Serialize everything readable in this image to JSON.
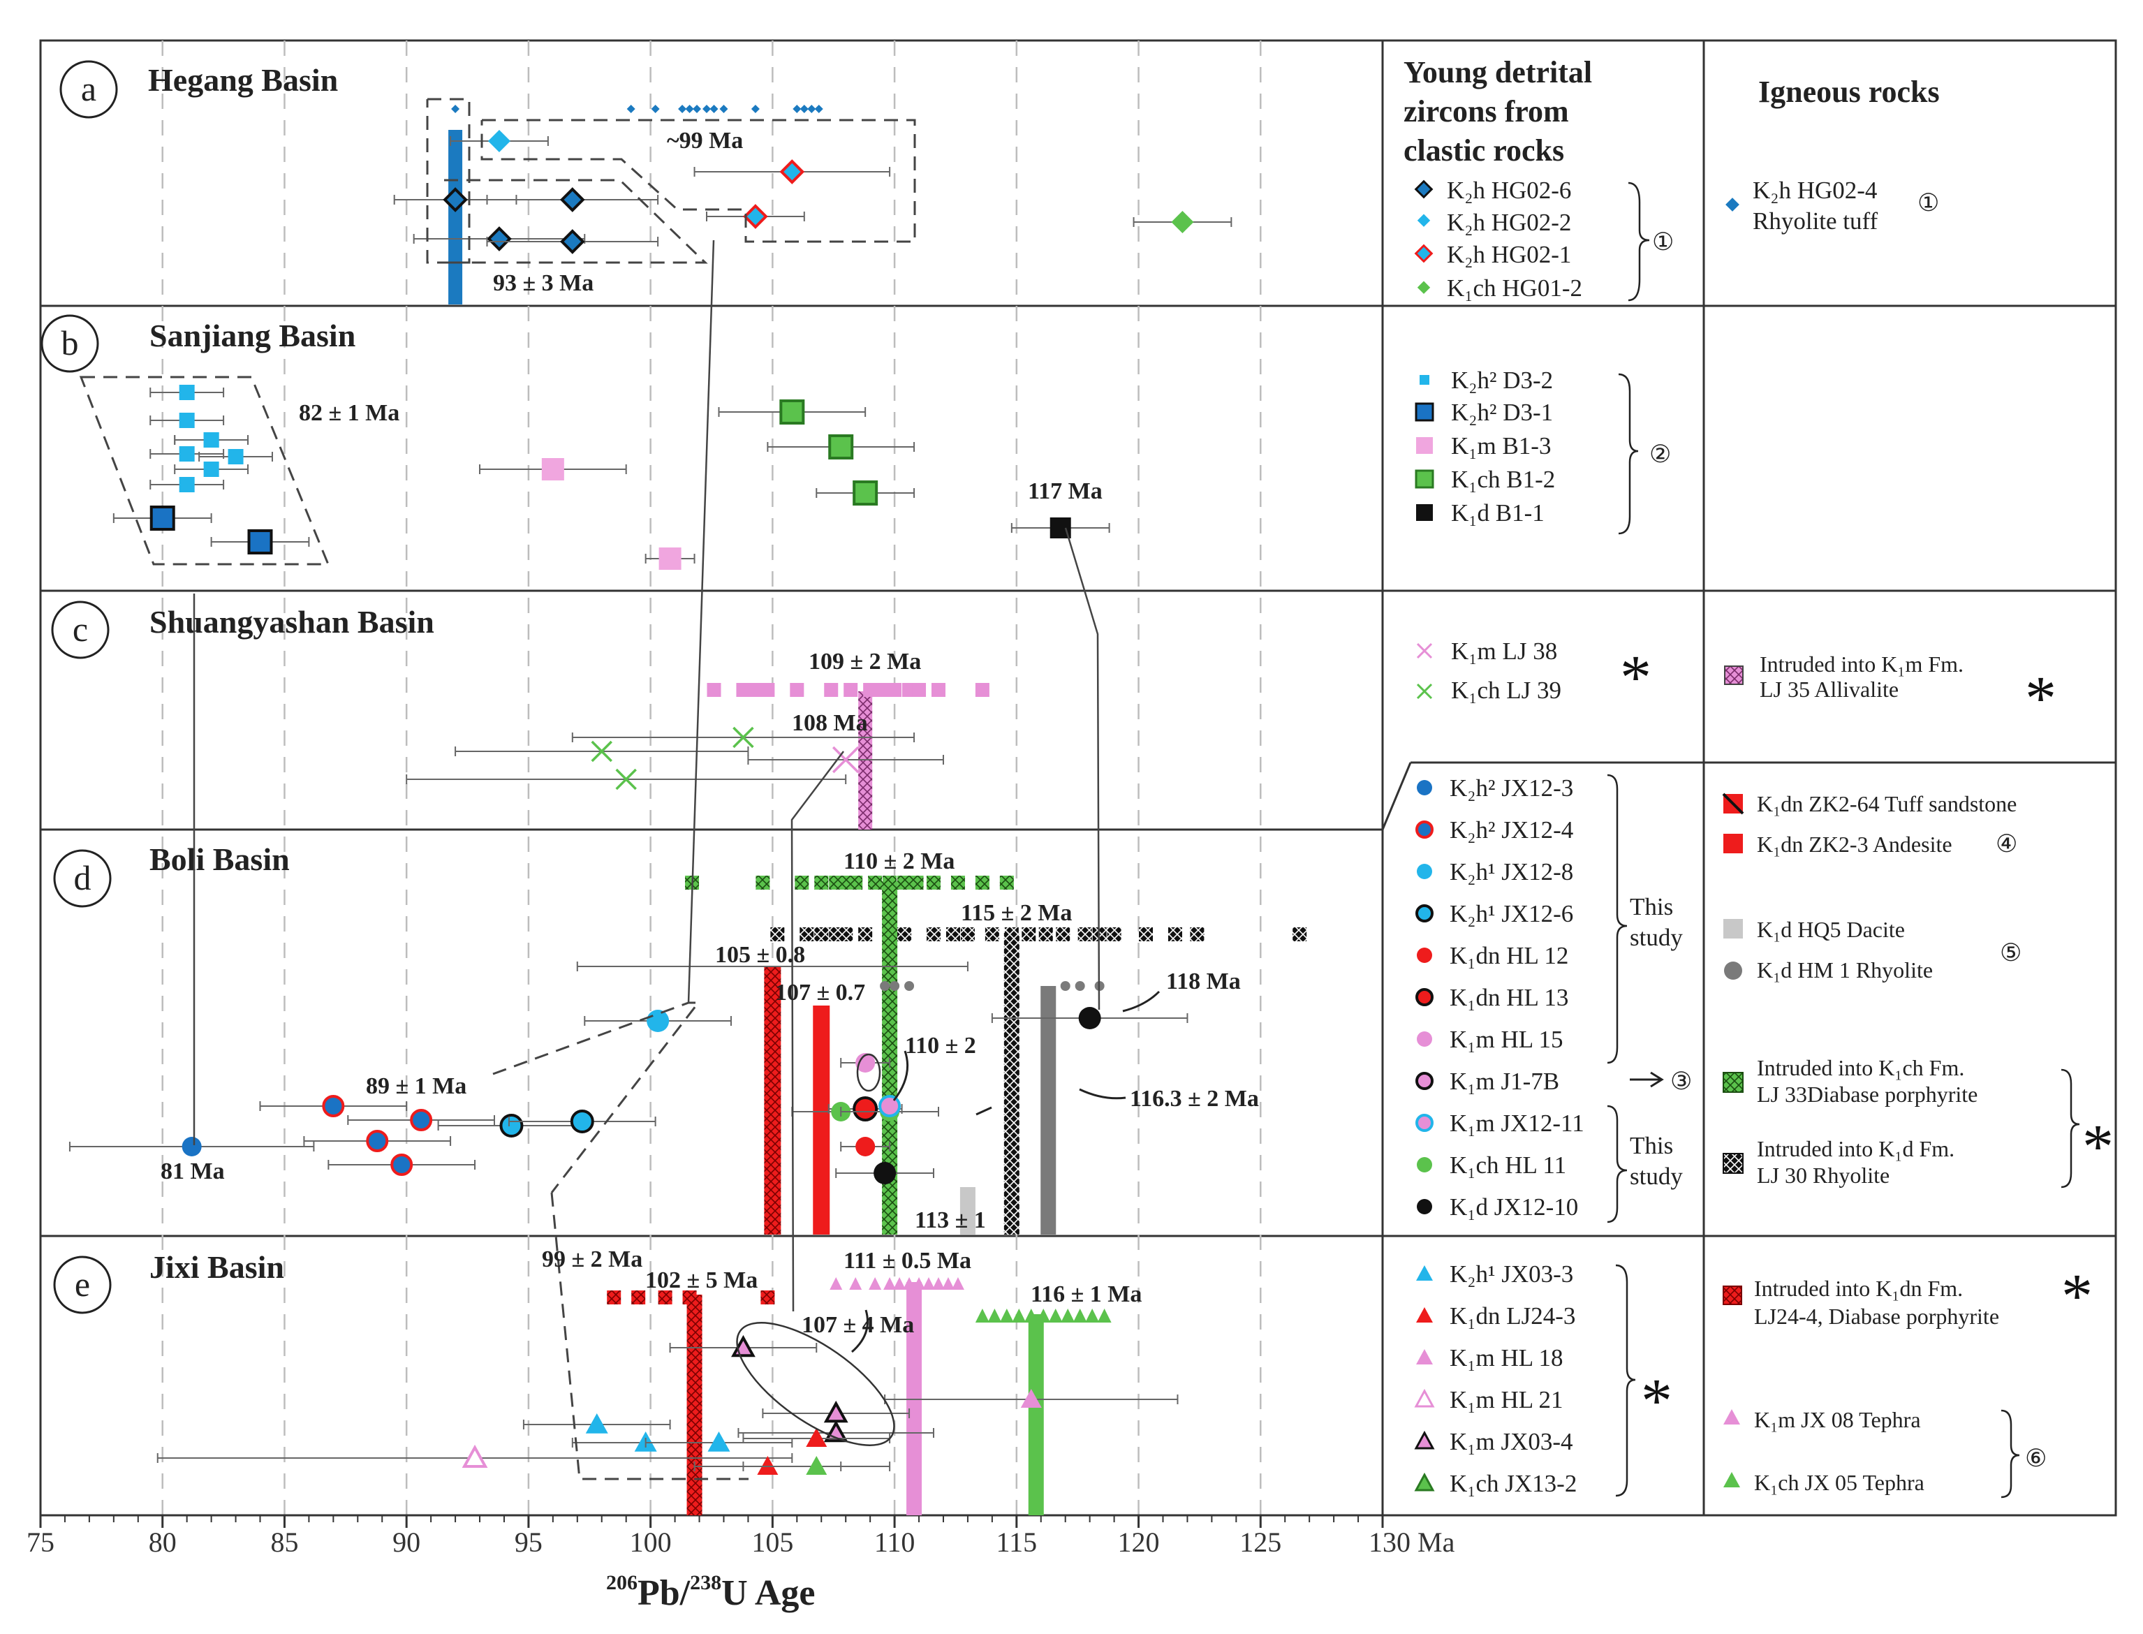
{
  "chart_data": {
    "type": "scatter",
    "xlabel": "206Pb/238U Age",
    "x_unit": "Ma",
    "xlim": [
      75,
      130
    ],
    "xticks": [
      "75",
      "80",
      "85",
      "90",
      "95",
      "100",
      "105",
      "110",
      "115",
      "120",
      "125",
      "130 Ma"
    ],
    "xlabel_parts": {
      "sup1": "206",
      "base1": "Pb/",
      "sup2": "238",
      "base2": "U Age"
    },
    "panels": [
      {
        "letter": "a",
        "title": "Hegang Basin",
        "annotations": [
          "~99 Ma",
          "93 ± 3 Ma"
        ],
        "points": [
          {
            "sample": "K2h HG02-6",
            "age": 92.0,
            "err": 2.5
          },
          {
            "sample": "K2h HG02-6",
            "age": 93.8,
            "err": 3.5
          },
          {
            "sample": "K2h HG02-6",
            "age": 96.8,
            "err": 3.5
          },
          {
            "sample": "K2h HG02-6",
            "age": 96.8,
            "err": 3.5
          },
          {
            "sample": "K2h HG02-2",
            "age": 93.8,
            "err": 2.0
          },
          {
            "sample": "K2h HG02-1",
            "age": 105.8,
            "err": 4.0
          },
          {
            "sample": "K2h HG02-1",
            "age": 104.3,
            "err": 2.0
          },
          {
            "sample": "K1ch HG01-2",
            "age": 121.8,
            "err": 2.0
          }
        ]
      },
      {
        "letter": "b",
        "title": "Sanjiang Basin",
        "annotations": [
          "82 ± 1 Ma",
          "117 Ma"
        ],
        "points": [
          {
            "sample": "K2h2 D3-2",
            "age": 81.0,
            "err": 1.5
          },
          {
            "sample": "K2h2 D3-2",
            "age": 81.0,
            "err": 1.5
          },
          {
            "sample": "K2h2 D3-2",
            "age": 82.0,
            "err": 1.5
          },
          {
            "sample": "K2h2 D3-2",
            "age": 81.0,
            "err": 1.5
          },
          {
            "sample": "K2h2 D3-2",
            "age": 82.0,
            "err": 1.5
          },
          {
            "sample": "K2h2 D3-2",
            "age": 83.0,
            "err": 1.5
          },
          {
            "sample": "K2h2 D3-2",
            "age": 82.0,
            "err": 1.5
          },
          {
            "sample": "K2h2 D3-2",
            "age": 81.0,
            "err": 1.5
          },
          {
            "sample": "K2h2 D3-1",
            "age": 80.0,
            "err": 2.0
          },
          {
            "sample": "K2h2 D3-1",
            "age": 84.0,
            "err": 2.0
          },
          {
            "sample": "K1m B1-3",
            "age": 96.0,
            "err": 3.0
          },
          {
            "sample": "K1m B1-3",
            "age": 100.8,
            "err": 1.0
          },
          {
            "sample": "K1ch B1-2",
            "age": 105.8,
            "err": 3.0
          },
          {
            "sample": "K1ch B1-2",
            "age": 107.8,
            "err": 3.0
          },
          {
            "sample": "K1ch B1-2",
            "age": 108.8,
            "err": 2.0
          },
          {
            "sample": "K1d B1-1",
            "age": 116.8,
            "err": 2.0
          }
        ]
      },
      {
        "letter": "c",
        "title": "Shuangyashan Basin",
        "annotations": [
          "109 ± 2 Ma",
          "108 Ma"
        ],
        "points": [
          {
            "sample": "K1ch LJ 39",
            "age": 98.0,
            "err": 6.0
          },
          {
            "sample": "K1ch LJ 39",
            "age": 103.8,
            "err": 7.0
          },
          {
            "sample": "K1ch LJ 39",
            "age": 99.0,
            "err": 9.0
          },
          {
            "sample": "K1m LJ 38",
            "age": 108.0,
            "err": 4.0
          }
        ],
        "bars": [
          {
            "sample": "LJ 35 Allivalite",
            "age": 108.8
          }
        ]
      },
      {
        "letter": "d",
        "title": "Boli Basin",
        "annotations": [
          "110 ± 2 Ma",
          "115 ± 2 Ma",
          "105 ± 0.8",
          "107 ± 0.7",
          "118 Ma",
          "110 ± 2",
          "116.3 ± 2 Ma",
          "89 ± 1 Ma",
          "81 Ma",
          "113 ± 1"
        ],
        "points": [
          {
            "sample": "K2h2 JX12-3",
            "age": 81.2,
            "err": 5.0
          },
          {
            "sample": "K2h2 JX12-4",
            "age": 87.0,
            "err": 3.0
          },
          {
            "sample": "K2h2 JX12-4",
            "age": 90.6,
            "err": 3.0
          },
          {
            "sample": "K2h2 JX12-4",
            "age": 88.8,
            "err": 3.0
          },
          {
            "sample": "K2h2 JX12-4",
            "age": 89.8,
            "err": 3.0
          },
          {
            "sample": "K2h1 JX12-8",
            "age": 100.3,
            "err": 3.0
          },
          {
            "sample": "K2h1 JX12-6",
            "age": 94.3,
            "err": 3.0
          },
          {
            "sample": "K2h1 JX12-6",
            "age": 97.2,
            "err": 3.0
          },
          {
            "sample": "K1d JX12-10",
            "age": 118.0,
            "err": 4.0
          },
          {
            "sample": "K1m HL 15",
            "age": 108.8,
            "err": 1.0
          },
          {
            "sample": "K1dn HL 13",
            "age": 108.8,
            "err": 1.5
          },
          {
            "sample": "K1dn HL 12",
            "age": 108.8,
            "err": 1.0
          },
          {
            "sample": "K1ch HL 11",
            "age": 107.8,
            "err": 2.0
          },
          {
            "sample": "K1ch HL 11",
            "age": 109.8,
            "err": 2.0
          },
          {
            "sample": "K1d JX12-10",
            "age": 109.6,
            "err": 2.0
          }
        ],
        "bars": [
          {
            "sample": "K1dn ZK2-64 Tuff sandstone",
            "age": 105.0
          },
          {
            "sample": "K1dn ZK2-3 Andesite",
            "age": 107.0
          },
          {
            "sample": "LJ 33 Diabase porphyrite",
            "age": 109.8
          },
          {
            "sample": "LJ 30 Rhyolite",
            "age": 114.8
          },
          {
            "sample": "K1d HM 1 Rhyolite",
            "age": 116.3
          },
          {
            "sample": "K1d HQ5 Dacite",
            "age": 113.0
          }
        ]
      },
      {
        "letter": "e",
        "title": "Jixi Basin",
        "annotations": [
          "99 ± 2 Ma",
          "102 ± 5 Ma",
          "111 ± 0.5 Ma",
          "116 ± 1 Ma",
          "107 ± 4 Ma"
        ],
        "points": [
          {
            "sample": "K2h1 JX03-3",
            "age": 97.8,
            "err": 3.0
          },
          {
            "sample": "K2h1 JX03-3",
            "age": 99.8,
            "err": 3.0
          },
          {
            "sample": "K2h1 JX03-3",
            "age": 102.8,
            "err": 3.0
          },
          {
            "sample": "K1m HL 21",
            "age": 92.8,
            "err": 13.0
          },
          {
            "sample": "K1m JX03-4",
            "age": 103.8,
            "err": 3.0
          },
          {
            "sample": "K1m JX03-4",
            "age": 107.6,
            "err": 3.0
          },
          {
            "sample": "K1m JX03-4",
            "age": 107.6,
            "err": 4.0
          },
          {
            "sample": "K1dn LJ24-3",
            "age": 104.8,
            "err": 3.0
          },
          {
            "sample": "K1dn LJ24-3",
            "age": 106.8,
            "err": 3.0
          },
          {
            "sample": "K1ch JX13-2",
            "age": 106.8,
            "err": 3.0
          },
          {
            "sample": "K1m HL 18",
            "age": 115.6,
            "err": 6.0
          }
        ],
        "bars": [
          {
            "sample": "LJ24-4 Diabase porphyrite",
            "age": 101.8
          },
          {
            "sample": "K1m JX 08 Tephra",
            "age": 110.8
          },
          {
            "sample": "K1ch JX 05 Tephra",
            "age": 115.8
          }
        ]
      }
    ]
  },
  "legend": {
    "detrital_header": [
      "Young detrital",
      "zircons from",
      "clastic rocks"
    ],
    "igneous_header": "Igneous rocks",
    "a": {
      "items": [
        "K₂h  HG02-6",
        "K₂h  HG02-2",
        "K₂h  HG02-1",
        "K₁ch HG01-2"
      ],
      "ref": "①",
      "igneous": [
        "K₂h HG02-4",
        "Rhyolite tuff"
      ],
      "igneous_ref": "①"
    },
    "b": {
      "items": [
        "K₂h²  D3-2",
        "K₂h²  D3-1",
        "K₁m  B1-3",
        "K₁ch  B1-2",
        "K₁d    B1-1"
      ],
      "ref": "②"
    },
    "c": {
      "items": [
        "K₁m  LJ 38",
        "K₁ch LJ 39"
      ],
      "mark": "*",
      "igneous": [
        "Intruded into  K₁m  Fm.",
        "LJ 35 Allivalite"
      ],
      "igneous_mark": "*"
    },
    "d": {
      "items": [
        "K₂h² JX12-3",
        "K₂h² JX12-4",
        "K₂h¹ JX12-8",
        "K₂h¹ JX12-6",
        "K₁dn HL 12",
        "K₁dn HL 13",
        "K₁m  HL 15",
        "K₁m  J1-7B",
        "K₁m  JX12-11",
        "K₁ch  HL 11",
        "K₁d   JX12-10"
      ],
      "this_study": [
        "This",
        "study"
      ],
      "ref3": "③",
      "igneous": [
        "K₁dn  ZK2-64 Tuff sandstone",
        "K₁dn  ZK2-3 Andesite",
        "K₁d  HQ5 Dacite",
        "K₁d   HM 1 Rhyolite",
        "Intruded into K₁ch  Fm.",
        "LJ 33Diabase porphyrite",
        "Intruded into  K₁d  Fm.",
        "LJ 30 Rhyolite"
      ],
      "ref4": "④",
      "ref5": "⑤",
      "mark": "*"
    },
    "e": {
      "items": [
        "K₂h¹  JX03-3",
        "K₁dn LJ24-3",
        "K₁m  HL 18",
        "K₁m  HL 21",
        "K₁m  JX03-4",
        "K₁ch JX13-2"
      ],
      "mark": "*",
      "igneous": [
        "Intruded into K₁dn Fm.",
        "LJ24-4, Diabase porphyrite",
        "K₁m JX 08 Tephra",
        "K₁ch  JX 05 Tephra"
      ],
      "igneous_mark": "*",
      "ref6": "⑥"
    }
  },
  "colors": {
    "blue": "#1a73c4",
    "cyan": "#22b5ea",
    "pink": "#e68fd6",
    "green": "#5bc24c",
    "red": "#ee1c1c",
    "black": "#111111",
    "grey": "#7a7a7a",
    "lightgrey": "#c8c8c8",
    "diamondblue": "#1b7ac0"
  }
}
